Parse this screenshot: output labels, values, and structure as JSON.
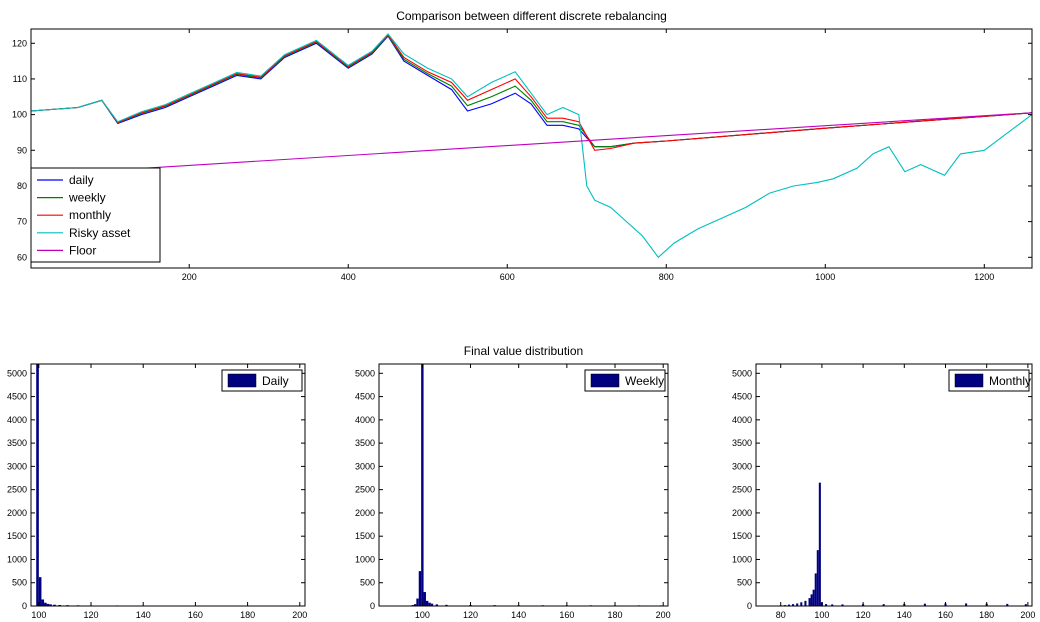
{
  "colors": {
    "daily": "#0000ff",
    "weekly": "#008000",
    "monthly": "#ff0000",
    "risky": "#00bfbf",
    "floor": "#bf00bf",
    "hist_bar": "#000080"
  },
  "chart_data": [
    {
      "type": "line",
      "title": "Comparison  between different discrete rebalancing",
      "xlabel": "",
      "ylabel": "",
      "xlim": [
        1,
        1260
      ],
      "ylim": [
        57,
        124
      ],
      "xticks": [
        200,
        400,
        600,
        800,
        1000,
        1200
      ],
      "yticks": [
        60,
        70,
        80,
        90,
        100,
        110,
        120
      ],
      "grid": false,
      "legend_position": "bottom-left",
      "series": [
        {
          "name": "daily",
          "color_key": "daily",
          "points": [
            [
              1,
              101
            ],
            [
              60,
              102
            ],
            [
              90,
              104
            ],
            [
              110,
              97.5
            ],
            [
              140,
              100
            ],
            [
              170,
              102
            ],
            [
              200,
              105
            ],
            [
              230,
              108
            ],
            [
              260,
              111
            ],
            [
              290,
              110
            ],
            [
              320,
              116
            ],
            [
              360,
              120
            ],
            [
              400,
              113
            ],
            [
              430,
              117
            ],
            [
              450,
              122
            ],
            [
              470,
              115
            ],
            [
              500,
              111
            ],
            [
              530,
              107
            ],
            [
              550,
              101
            ],
            [
              580,
              103
            ],
            [
              610,
              106
            ],
            [
              630,
              103
            ],
            [
              650,
              97
            ],
            [
              670,
              97
            ],
            [
              690,
              96
            ],
            [
              710,
              91
            ],
            [
              730,
              91
            ],
            [
              760,
              92
            ],
            [
              800,
              92.6
            ],
            [
              1000,
              96.2
            ],
            [
              1260,
              100.5
            ]
          ]
        },
        {
          "name": "weekly",
          "color_key": "weekly",
          "points": [
            [
              1,
              101
            ],
            [
              60,
              102
            ],
            [
              90,
              104
            ],
            [
              110,
              97.7
            ],
            [
              140,
              100.3
            ],
            [
              170,
              102.3
            ],
            [
              200,
              105.3
            ],
            [
              230,
              108.3
            ],
            [
              260,
              111.3
            ],
            [
              290,
              110.3
            ],
            [
              320,
              116.3
            ],
            [
              360,
              120.3
            ],
            [
              400,
              113.3
            ],
            [
              430,
              117.3
            ],
            [
              450,
              122.2
            ],
            [
              470,
              115.5
            ],
            [
              500,
              111.5
            ],
            [
              530,
              108
            ],
            [
              550,
              102.5
            ],
            [
              580,
              105
            ],
            [
              610,
              108
            ],
            [
              630,
              104
            ],
            [
              650,
              98
            ],
            [
              670,
              98
            ],
            [
              690,
              97
            ],
            [
              710,
              91
            ],
            [
              730,
              91
            ],
            [
              760,
              92
            ],
            [
              800,
              92.6
            ],
            [
              1000,
              96.2
            ],
            [
              1260,
              100.5
            ]
          ]
        },
        {
          "name": "monthly",
          "color_key": "monthly",
          "points": [
            [
              1,
              101
            ],
            [
              60,
              102
            ],
            [
              90,
              104
            ],
            [
              110,
              97.8
            ],
            [
              140,
              100.5
            ],
            [
              170,
              102.5
            ],
            [
              200,
              105.5
            ],
            [
              230,
              108.5
            ],
            [
              260,
              111.5
            ],
            [
              290,
              110.5
            ],
            [
              320,
              116.5
            ],
            [
              360,
              120.5
            ],
            [
              400,
              113.5
            ],
            [
              430,
              117.5
            ],
            [
              450,
              122.4
            ],
            [
              470,
              116
            ],
            [
              500,
              112
            ],
            [
              530,
              109
            ],
            [
              550,
              104
            ],
            [
              580,
              107
            ],
            [
              610,
              110
            ],
            [
              630,
              105
            ],
            [
              650,
              99
            ],
            [
              670,
              99
            ],
            [
              690,
              98
            ],
            [
              710,
              90
            ],
            [
              730,
              90.5
            ],
            [
              760,
              92
            ],
            [
              800,
              92.6
            ],
            [
              1000,
              96.2
            ],
            [
              1260,
              100.5
            ]
          ]
        },
        {
          "name": "Risky asset",
          "color_key": "risky",
          "points": [
            [
              1,
              101
            ],
            [
              60,
              102
            ],
            [
              90,
              104
            ],
            [
              110,
              98
            ],
            [
              140,
              100.8
            ],
            [
              170,
              102.8
            ],
            [
              200,
              105.8
            ],
            [
              230,
              108.8
            ],
            [
              260,
              111.8
            ],
            [
              290,
              110.8
            ],
            [
              320,
              116.8
            ],
            [
              360,
              120.8
            ],
            [
              400,
              113.8
            ],
            [
              430,
              117.8
            ],
            [
              450,
              122.6
            ],
            [
              470,
              117
            ],
            [
              500,
              113
            ],
            [
              530,
              110
            ],
            [
              550,
              105
            ],
            [
              580,
              109
            ],
            [
              610,
              112
            ],
            [
              630,
              106
            ],
            [
              650,
              100
            ],
            [
              670,
              102
            ],
            [
              690,
              100
            ],
            [
              700,
              80
            ],
            [
              710,
              76
            ],
            [
              730,
              74
            ],
            [
              750,
              70
            ],
            [
              770,
              66
            ],
            [
              790,
              60
            ],
            [
              810,
              64
            ],
            [
              840,
              68
            ],
            [
              870,
              71
            ],
            [
              900,
              74
            ],
            [
              930,
              78
            ],
            [
              960,
              80
            ],
            [
              990,
              81
            ],
            [
              1010,
              82
            ],
            [
              1040,
              85
            ],
            [
              1060,
              89
            ],
            [
              1080,
              91
            ],
            [
              1100,
              84
            ],
            [
              1120,
              86
            ],
            [
              1150,
              83
            ],
            [
              1170,
              89
            ],
            [
              1200,
              90
            ],
            [
              1230,
              95
            ],
            [
              1260,
              100
            ]
          ]
        },
        {
          "name": "Floor",
          "color_key": "floor",
          "points": [
            [
              1,
              83
            ],
            [
              1260,
              100.5
            ]
          ]
        }
      ]
    },
    {
      "type": "bar",
      "title": "",
      "xlabel": "",
      "ylabel": "",
      "xlim": [
        97,
        202
      ],
      "ylim": [
        0,
        5200
      ],
      "xticks": [
        100,
        120,
        140,
        160,
        180,
        200
      ],
      "yticks": [
        0,
        500,
        1000,
        1500,
        2000,
        2500,
        3000,
        3500,
        4000,
        4500,
        5000
      ],
      "legend_position": "top-right",
      "series": [
        {
          "name": "Daily",
          "color_key": "hist_bar",
          "bins": [
            [
              99.5,
              5200
            ],
            [
              100.5,
              620
            ],
            [
              101.5,
              140
            ],
            [
              102.5,
              70
            ],
            [
              103.5,
              45
            ],
            [
              104.5,
              35
            ],
            [
              106,
              28
            ],
            [
              108,
              22
            ],
            [
              111,
              18
            ],
            [
              115,
              15
            ],
            [
              120,
              12
            ],
            [
              130,
              12
            ],
            [
              140,
              10
            ],
            [
              150,
              10
            ],
            [
              160,
              10
            ],
            [
              170,
              9
            ],
            [
              180,
              9
            ],
            [
              190,
              8
            ],
            [
              199,
              8
            ]
          ]
        }
      ]
    },
    {
      "type": "bar",
      "title": "Final value distribution",
      "xlabel": "",
      "ylabel": "",
      "xlim": [
        82,
        202
      ],
      "ylim": [
        0,
        5200
      ],
      "xticks": [
        100,
        120,
        140,
        160,
        180,
        200
      ],
      "yticks": [
        0,
        500,
        1000,
        1500,
        2000,
        2500,
        3000,
        3500,
        4000,
        4500,
        5000
      ],
      "legend_position": "top-right",
      "series": [
        {
          "name": "Weekly",
          "color_key": "hist_bar",
          "bins": [
            [
              95,
              10
            ],
            [
              96,
              20
            ],
            [
              97,
              40
            ],
            [
              98,
              160
            ],
            [
              99,
              750
            ],
            [
              100,
              5200
            ],
            [
              101,
              300
            ],
            [
              102,
              110
            ],
            [
              103,
              70
            ],
            [
              104,
              50
            ],
            [
              106,
              35
            ],
            [
              110,
              25
            ],
            [
              120,
              20
            ],
            [
              130,
              18
            ],
            [
              140,
              16
            ],
            [
              150,
              16
            ],
            [
              160,
              15
            ],
            [
              170,
              15
            ],
            [
              180,
              14
            ],
            [
              190,
              14
            ],
            [
              199,
              13
            ]
          ]
        }
      ]
    },
    {
      "type": "bar",
      "title": "",
      "xlabel": "",
      "ylabel": "",
      "xlim": [
        68,
        202
      ],
      "ylim": [
        0,
        5200
      ],
      "xticks": [
        80,
        100,
        120,
        140,
        160,
        180,
        200
      ],
      "yticks": [
        0,
        500,
        1000,
        1500,
        2000,
        2500,
        3000,
        3500,
        4000,
        4500,
        5000
      ],
      "legend_position": "top-right",
      "series": [
        {
          "name": "Monthly",
          "color_key": "hist_bar",
          "bins": [
            [
              75,
              5
            ],
            [
              78,
              10
            ],
            [
              80,
              15
            ],
            [
              82,
              20
            ],
            [
              84,
              30
            ],
            [
              86,
              40
            ],
            [
              88,
              55
            ],
            [
              90,
              80
            ],
            [
              92,
              110
            ],
            [
              94,
              170
            ],
            [
              95,
              250
            ],
            [
              96,
              350
            ],
            [
              97,
              700
            ],
            [
              98,
              1200
            ],
            [
              99,
              2650
            ],
            [
              100,
              80
            ],
            [
              102,
              40
            ],
            [
              105,
              35
            ],
            [
              110,
              35
            ],
            [
              120,
              40
            ],
            [
              130,
              40
            ],
            [
              140,
              45
            ],
            [
              150,
              50
            ],
            [
              160,
              55
            ],
            [
              170,
              55
            ],
            [
              180,
              50
            ],
            [
              190,
              45
            ],
            [
              199,
              40
            ]
          ]
        }
      ]
    }
  ]
}
